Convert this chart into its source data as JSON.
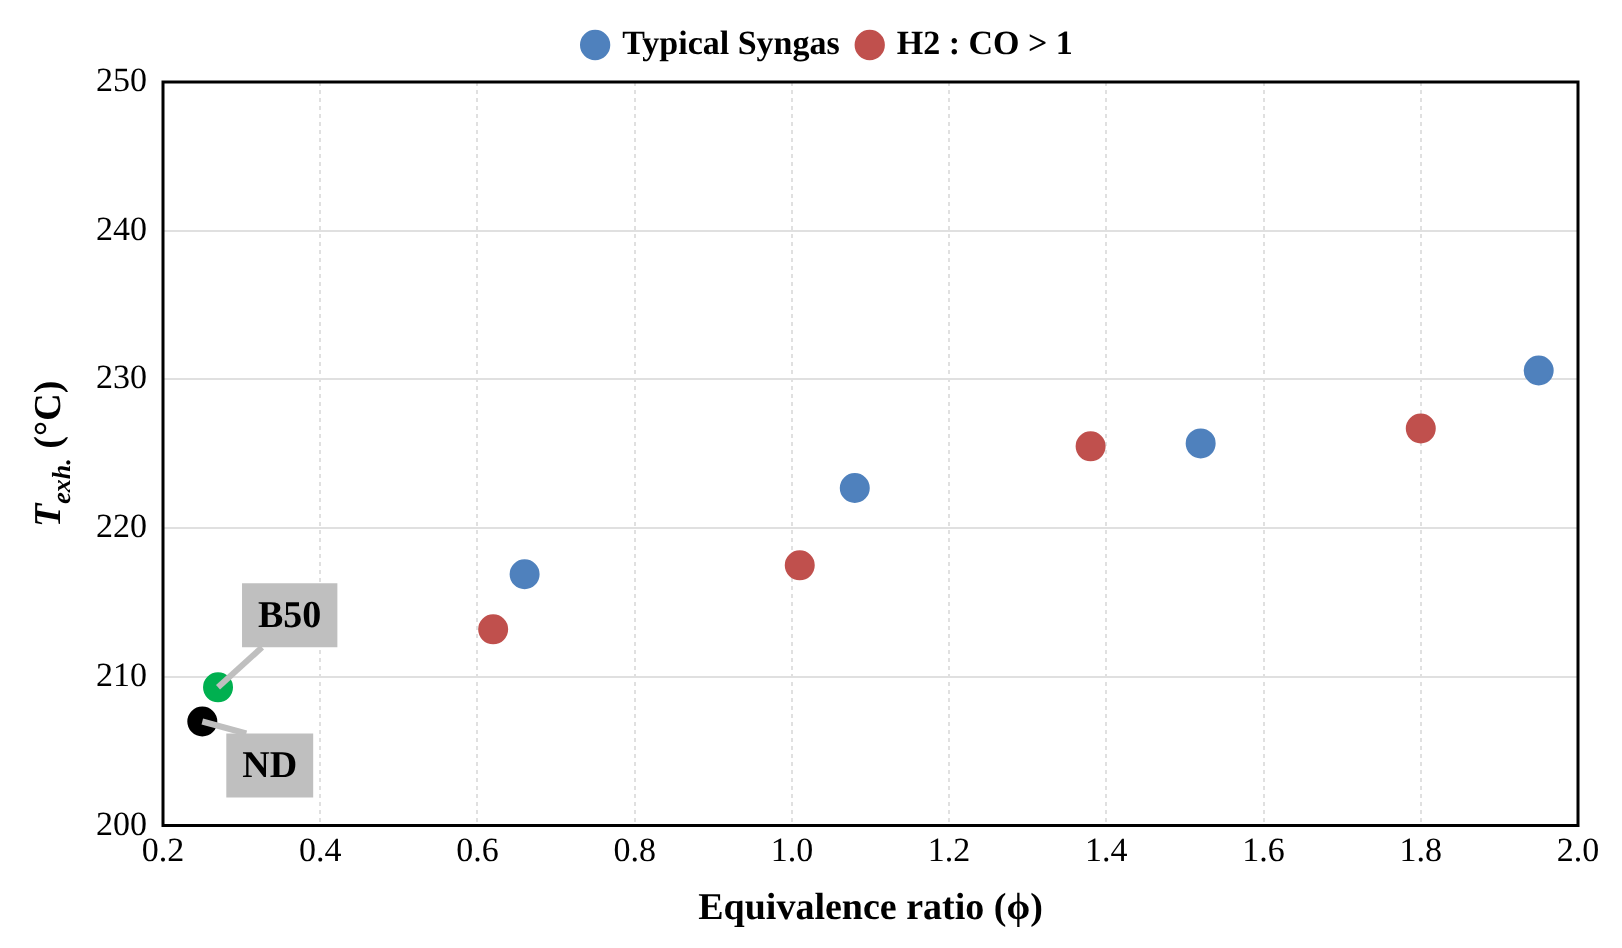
{
  "chart_data": {
    "type": "scatter",
    "xlabel": "Equivalence ratio (ϕ)",
    "ylabel": "T$_{exh.}$ (°C)",
    "xlim": [
      0.2,
      2.0
    ],
    "xticks": [
      {
        "value": 0.2,
        "label": "0.2"
      },
      {
        "value": 0.4,
        "label": "0.4"
      },
      {
        "value": 0.6,
        "label": "0.6"
      },
      {
        "value": 0.8,
        "label": "0.8"
      },
      {
        "value": 1.0,
        "label": "1.0"
      },
      {
        "value": 1.2,
        "label": "1.2"
      },
      {
        "value": 1.4,
        "label": "1.4"
      },
      {
        "value": 1.6,
        "label": "1.6"
      },
      {
        "value": 1.8,
        "label": "1.8"
      },
      {
        "value": 2.0,
        "label": "2.0"
      }
    ],
    "ylim": [
      200,
      250
    ],
    "yticks": [
      200,
      210,
      220,
      230,
      240,
      250
    ],
    "series": [
      {
        "name": "Typical Syngas",
        "color": "#4f81bd",
        "x": [
          0.66,
          1.08,
          1.52,
          1.95
        ],
        "values": [
          216.9,
          222.7,
          225.7,
          230.6
        ]
      },
      {
        "name": "H2 : CO > 1",
        "color": "#c0504d",
        "x": [
          0.62,
          1.01,
          1.38,
          1.8
        ],
        "values": [
          213.2,
          217.5,
          225.5,
          226.7
        ]
      },
      {
        "color": "#00b050",
        "x": [
          0.27
        ],
        "values": [
          209.3
        ]
      },
      {
        "color": "#000000",
        "x": [
          0.25
        ],
        "values": [
          207.0
        ]
      }
    ],
    "annotations": [
      {
        "text": "B50",
        "x": 0.27,
        "y": 209.3
      },
      {
        "text": "ND",
        "x": 0.25,
        "y": 207.0
      }
    ],
    "grid": true,
    "legend": "top",
    "marker": "circle"
  }
}
